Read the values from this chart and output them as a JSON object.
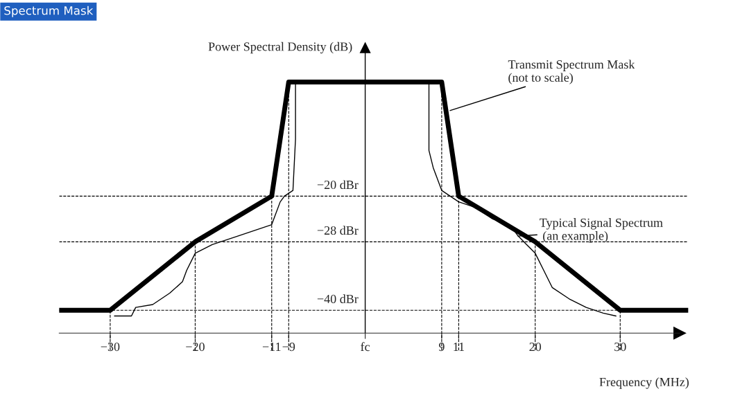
{
  "chart_data": {
    "type": "line",
    "title": "Spectrum Mask",
    "ylabel": "Power Spectral Density (dB)",
    "xlabel": "Frequency (MHz)",
    "xlim": [
      -36,
      38
    ],
    "ylim": [
      -47,
      6
    ],
    "xticks": [
      -30,
      -20,
      -11,
      -9,
      {
        "value": 0,
        "label": "fc"
      },
      9,
      11,
      20,
      30
    ],
    "tick_labels": "x",
    "grid": false,
    "legend": false,
    "series": [
      {
        "color": "#000000",
        "x": [
          -36,
          -30,
          -20,
          -11,
          -9,
          9,
          11,
          20,
          30,
          38
        ],
        "values": [
          -40,
          -40,
          -28,
          -20,
          0,
          0,
          -20,
          -28,
          -40,
          -40
        ]
      },
      {
        "color": "#000000",
        "x": [
          -29.5,
          -27.5,
          -27,
          -25,
          -23,
          -21.5,
          -21,
          -20,
          -18,
          -15,
          -13,
          -11,
          -10,
          -9.5,
          -8.5,
          -8.2,
          -8.2
        ],
        "values": [
          -41,
          -41,
          -39.5,
          -39,
          -37,
          -35,
          -33,
          -30,
          -28.5,
          -27,
          -26,
          -25,
          -21,
          -20,
          -19,
          -10,
          0
        ]
      },
      {
        "color": "#000000",
        "x": [
          7.5,
          7.5,
          8,
          9,
          11,
          13,
          15,
          17,
          18,
          19,
          20,
          21,
          22,
          24,
          26,
          28,
          29.5
        ],
        "values": [
          0,
          -12,
          -15,
          -19,
          -21,
          -22,
          -24,
          -25,
          -27,
          -28.5,
          -30,
          -33,
          -36,
          -38,
          -39.5,
          -40.5,
          -41
        ]
      }
    ],
    "ref_lines": [
      {
        "axis": "y",
        "value": -20,
        "label": "−20 dBr",
        "line_style": "dashed"
      },
      {
        "axis": "y",
        "value": -28,
        "label": "−28 dBr",
        "line_style": "dashed"
      },
      {
        "axis": "y",
        "value": -40,
        "label": "−40 dBr",
        "line_style": "dashed"
      },
      {
        "axis": "x",
        "value": -30,
        "line_style": "dashed"
      },
      {
        "axis": "x",
        "value": -20,
        "line_style": "dashed"
      },
      {
        "axis": "x",
        "value": -11,
        "line_style": "dashed"
      },
      {
        "axis": "x",
        "value": -9,
        "line_style": "dashed"
      },
      {
        "axis": "x",
        "value": 9,
        "line_style": "dashed"
      },
      {
        "axis": "x",
        "value": 11,
        "line_style": "dashed"
      },
      {
        "axis": "x",
        "value": 20,
        "line_style": "dashed"
      },
      {
        "axis": "x",
        "value": 30,
        "line_style": "dashed"
      }
    ],
    "annotations": [
      {
        "text": "Transmit Spectrum Mask\n(not to scale)",
        "x": 10,
        "y": -5
      },
      {
        "text": "Typical Signal Spectrum\n (an example)",
        "x": 18,
        "y": -27
      }
    ]
  }
}
